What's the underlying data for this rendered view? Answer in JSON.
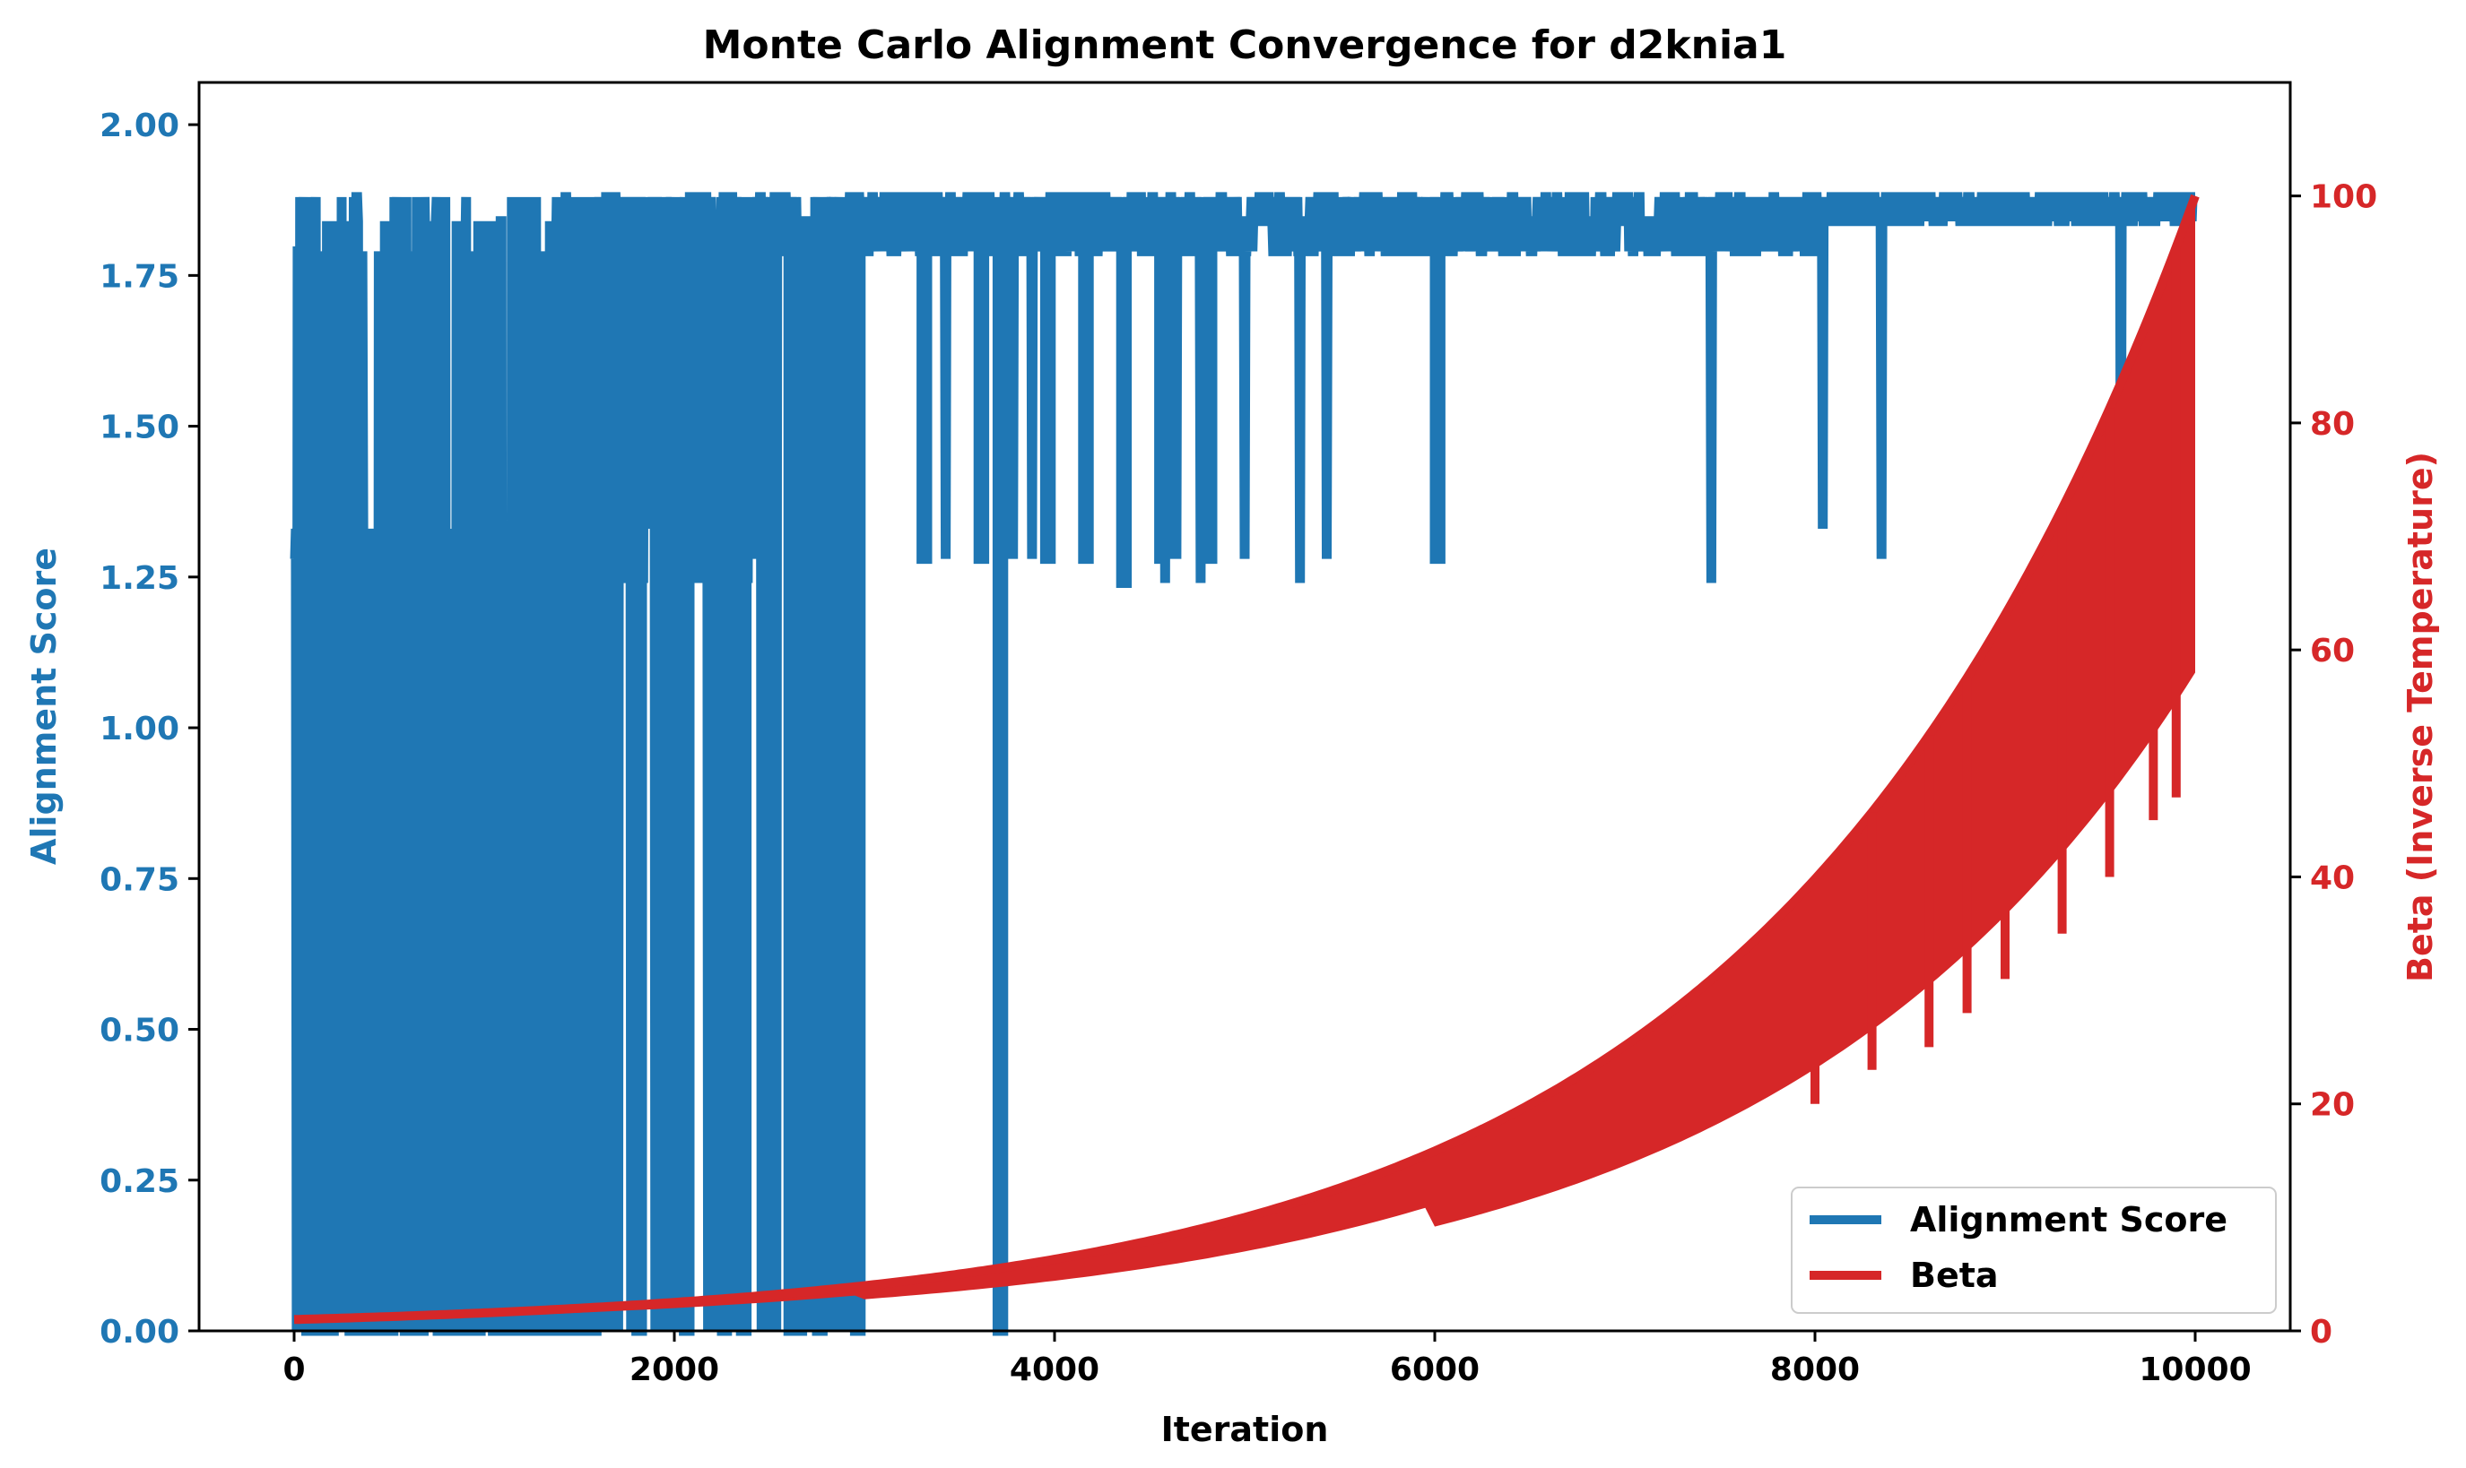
{
  "chart_data": {
    "type": "line",
    "title": "Monte Carlo Alignment Convergence for d2knia1",
    "xlabel": "Iteration",
    "ylabel_left": "Alignment Score",
    "ylabel_right": "Beta (Inverse Temperature)",
    "xlim": [
      -500,
      10500
    ],
    "ylim_left": [
      0,
      2.07
    ],
    "ylim_right": [
      0,
      110
    ],
    "x_ticks": [
      "0",
      "2000",
      "4000",
      "6000",
      "8000",
      "10000"
    ],
    "y_left_ticks": [
      "0.00",
      "0.25",
      "0.50",
      "0.75",
      "1.00",
      "1.25",
      "1.50",
      "1.75",
      "2.00"
    ],
    "y_right_ticks": [
      "0",
      "20",
      "40",
      "60",
      "80",
      "100"
    ],
    "grid": false,
    "legend_position": "lower-right",
    "legend": [
      "Alignment Score",
      "Beta"
    ],
    "colors": {
      "alignment": "#1f77b4",
      "beta": "#d62728"
    },
    "series": [
      {
        "name": "Alignment Score",
        "axis": "left",
        "x": [
          0,
          20,
          60,
          120,
          200,
          300,
          400,
          500,
          600,
          700,
          800,
          900,
          1000,
          1200,
          1400,
          1600,
          1800,
          2000,
          2200,
          2500,
          2800,
          3000,
          3300,
          3600,
          3700,
          4000,
          4500,
          5000,
          5500,
          6000,
          6500,
          7000,
          7500,
          8000,
          8500,
          9000,
          9500,
          10000
        ],
        "values": [
          1.28,
          0.0,
          1.88,
          0.0,
          1.83,
          0.0,
          1.84,
          0.0,
          1.88,
          0.0,
          1.88,
          1.84,
          1.88,
          1.88,
          1.84,
          1.88,
          1.88,
          1.84,
          1.88,
          1.84,
          1.88,
          1.79,
          1.88,
          1.28,
          0.0,
          1.88,
          1.84,
          1.88,
          1.84,
          1.79,
          1.88,
          1.84,
          1.88,
          1.88,
          1.84,
          1.88,
          1.84,
          1.88
        ],
        "min_dips": [
          {
            "x": 1500,
            "y": 0.0
          },
          {
            "x": 1800,
            "y": 0.0
          },
          {
            "x": 2050,
            "y": 0.0
          },
          {
            "x": 2350,
            "y": 0.0
          },
          {
            "x": 2600,
            "y": 0.0
          },
          {
            "x": 2750,
            "y": 0.0
          },
          {
            "x": 2950,
            "y": 0.0
          },
          {
            "x": 3700,
            "y": 0.0
          },
          {
            "x": 3300,
            "y": 1.28
          },
          {
            "x": 3600,
            "y": 1.28
          },
          {
            "x": 3950,
            "y": 1.28
          },
          {
            "x": 4150,
            "y": 1.28
          },
          {
            "x": 4350,
            "y": 1.24
          },
          {
            "x": 4550,
            "y": 1.28
          },
          {
            "x": 4800,
            "y": 1.28
          },
          {
            "x": 6000,
            "y": 1.28
          }
        ]
      },
      {
        "name": "Beta",
        "axis": "right",
        "x": [
          0,
          1000,
          2000,
          3000,
          4000,
          5000,
          6000,
          7000,
          8000,
          9000,
          9500,
          10000
        ],
        "values": [
          1.0,
          1.6,
          2.5,
          4.0,
          6.3,
          10.0,
          15.8,
          25.1,
          39.8,
          63.1,
          79.4,
          100.0
        ],
        "drops": [
          {
            "x": 8000,
            "to": 20
          },
          {
            "x": 8300,
            "to": 23
          },
          {
            "x": 8600,
            "to": 25
          },
          {
            "x": 8800,
            "to": 28
          },
          {
            "x": 9000,
            "to": 31
          },
          {
            "x": 9300,
            "to": 35
          },
          {
            "x": 9550,
            "to": 40
          },
          {
            "x": 9780,
            "to": 45
          },
          {
            "x": 9900,
            "to": 47
          }
        ]
      }
    ]
  }
}
